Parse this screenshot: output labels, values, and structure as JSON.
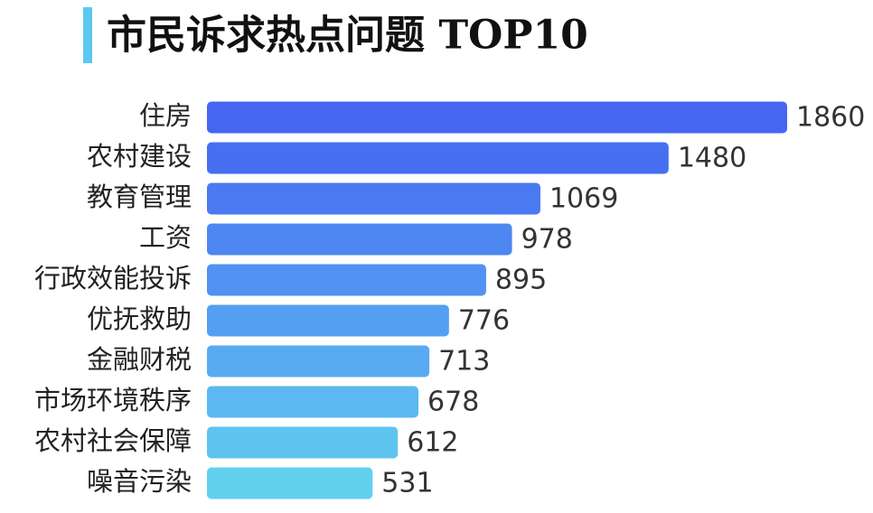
{
  "chart_data": {
    "type": "barh",
    "title": "市民诉求热点问题 TOP10",
    "categories": [
      "住房",
      "农村建设",
      "教育管理",
      "工资",
      "行政效能投诉",
      "优抚救助",
      "金融财税",
      "市场环境秩序",
      "农村社会保障",
      "噪音污染"
    ],
    "values": [
      1860,
      1480,
      1069,
      978,
      895,
      776,
      713,
      678,
      612,
      531
    ],
    "colors": [
      "#4466f2",
      "#476ff2",
      "#4a7af2",
      "#4e86f2",
      "#5192f2",
      "#559ff2",
      "#58abf1",
      "#5bb8f0",
      "#5ec4ef",
      "#62d1ef"
    ]
  }
}
